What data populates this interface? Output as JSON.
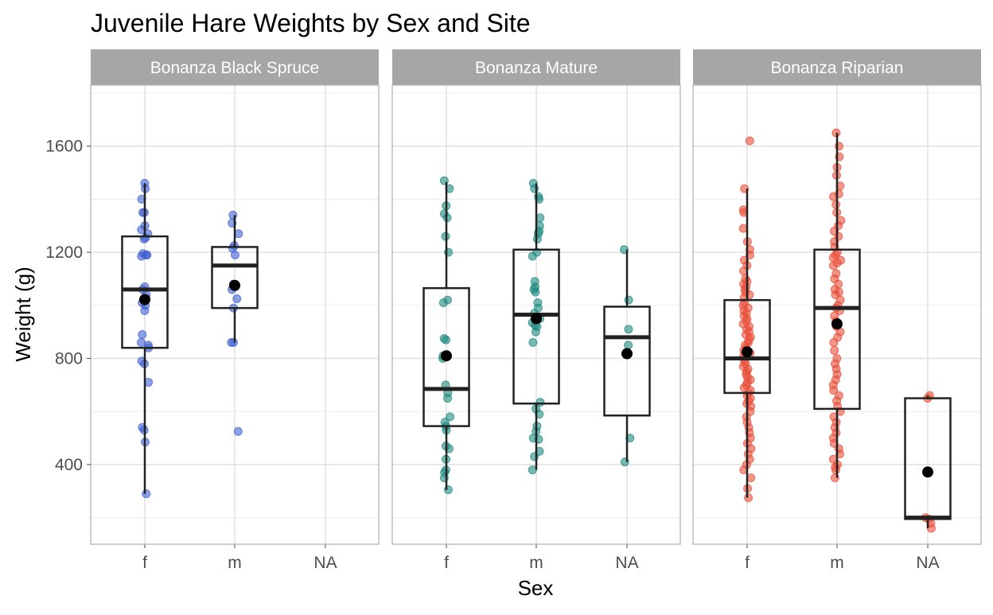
{
  "chart_data": {
    "type": "boxplot-jitter",
    "title": "Juvenile Hare Weights by Sex and Site",
    "xlabel": "Sex",
    "ylabel": "Weight (g)",
    "categories": [
      "f",
      "m",
      "NA"
    ],
    "ylim": [
      100,
      1830
    ],
    "yticks": [
      400,
      800,
      1200,
      1600
    ],
    "grid": true,
    "legend": "none",
    "mean_color": "#000000",
    "box_stroke": "#222222",
    "panels": [
      {
        "name": "Bonanza Black Spruce",
        "color": "#4060d0",
        "groups": [
          {
            "category": "f",
            "box": {
              "lower": 290,
              "q1": 840,
              "median": 1060,
              "q3": 1260,
              "upper": 1460
            },
            "mean": 1022,
            "points": [
              1460,
              1440,
              1400,
              1350,
              1350,
              1300,
              1285,
              1270,
              1255,
              1250,
              1195,
              1190,
              1190,
              1185,
              1070,
              1060,
              1040,
              1010,
              1000,
              980,
              890,
              860,
              850,
              840,
              790,
              780,
              710,
              540,
              530,
              485,
              290
            ]
          },
          {
            "category": "m",
            "box": {
              "lower": 860,
              "q1": 990,
              "median": 1150,
              "q3": 1220,
              "upper": 1340
            },
            "mean": 1075,
            "points": [
              1340,
              1310,
              1270,
              1225,
              1215,
              1190,
              1080,
              1060,
              1025,
              990,
              860,
              860,
              525
            ]
          }
        ]
      },
      {
        "name": "Bonanza Mature",
        "color": "#208a80",
        "groups": [
          {
            "category": "f",
            "box": {
              "lower": 305,
              "q1": 545,
              "median": 685,
              "q3": 1065,
              "upper": 1465
            },
            "mean": 810,
            "points": [
              1470,
              1440,
              1375,
              1345,
              1330,
              1260,
              1200,
              1020,
              1010,
              875,
              870,
              810,
              800,
              700,
              670,
              650,
              580,
              560,
              545,
              530,
              470,
              460,
              420,
              380,
              370,
              350,
              305
            ]
          },
          {
            "category": "m",
            "box": {
              "lower": 380,
              "q1": 630,
              "median": 965,
              "q3": 1210,
              "upper": 1460
            },
            "mean": 950,
            "points": [
              1460,
              1440,
              1410,
              1400,
              1330,
              1300,
              1280,
              1270,
              1250,
              1200,
              1185,
              1090,
              1070,
              1060,
              1050,
              1010,
              990,
              970,
              950,
              935,
              925,
              920,
              900,
              860,
              635,
              610,
              590,
              545,
              525,
              500,
              495,
              450,
              430,
              380
            ]
          },
          {
            "category": "NA",
            "box": {
              "lower": 410,
              "q1": 585,
              "median": 880,
              "q3": 995,
              "upper": 1210
            },
            "mean": 818,
            "points": [
              1210,
              1020,
              910,
              850,
              500,
              410
            ]
          }
        ]
      },
      {
        "name": "Bonanza Riparian",
        "color": "#e8503a",
        "groups": [
          {
            "category": "f",
            "box": {
              "lower": 275,
              "q1": 670,
              "median": 800,
              "q3": 1020,
              "upper": 1440
            },
            "mean": 825,
            "points": [
              1620,
              1440,
              1360,
              1350,
              1290,
              1240,
              1210,
              1190,
              1170,
              1150,
              1130,
              1100,
              1090,
              1080,
              1070,
              1060,
              1050,
              1040,
              1030,
              1010,
              1000,
              990,
              980,
              970,
              960,
              950,
              940,
              930,
              920,
              910,
              900,
              890,
              880,
              870,
              860,
              850,
              840,
              830,
              820,
              810,
              800,
              790,
              780,
              770,
              760,
              750,
              740,
              730,
              720,
              710,
              700,
              690,
              680,
              670,
              660,
              650,
              640,
              630,
              620,
              600,
              580,
              560,
              540,
              520,
              500,
              480,
              460,
              440,
              420,
              400,
              380,
              350,
              310,
              275
            ]
          },
          {
            "category": "m",
            "box": {
              "lower": 350,
              "q1": 610,
              "median": 990,
              "q3": 1210,
              "upper": 1650
            },
            "mean": 930,
            "points": [
              1650,
              1600,
              1560,
              1520,
              1490,
              1450,
              1420,
              1410,
              1380,
              1350,
              1320,
              1300,
              1280,
              1260,
              1240,
              1220,
              1200,
              1190,
              1180,
              1170,
              1160,
              1150,
              1120,
              1100,
              1080,
              1060,
              1050,
              1040,
              1020,
              1000,
              990,
              980,
              960,
              940,
              920,
              900,
              880,
              860,
              830,
              800,
              780,
              760,
              740,
              720,
              700,
              680,
              660,
              640,
              620,
              600,
              580,
              560,
              540,
              520,
              500,
              480,
              460,
              440,
              420,
              400,
              390,
              380,
              350
            ]
          },
          {
            "category": "NA",
            "box": {
              "lower": 160,
              "q1": 195,
              "median": 200,
              "q3": 650,
              "upper": 660
            },
            "mean": 372,
            "points": [
              660,
              650,
              200,
              195,
              180,
              160
            ]
          }
        ]
      }
    ]
  }
}
